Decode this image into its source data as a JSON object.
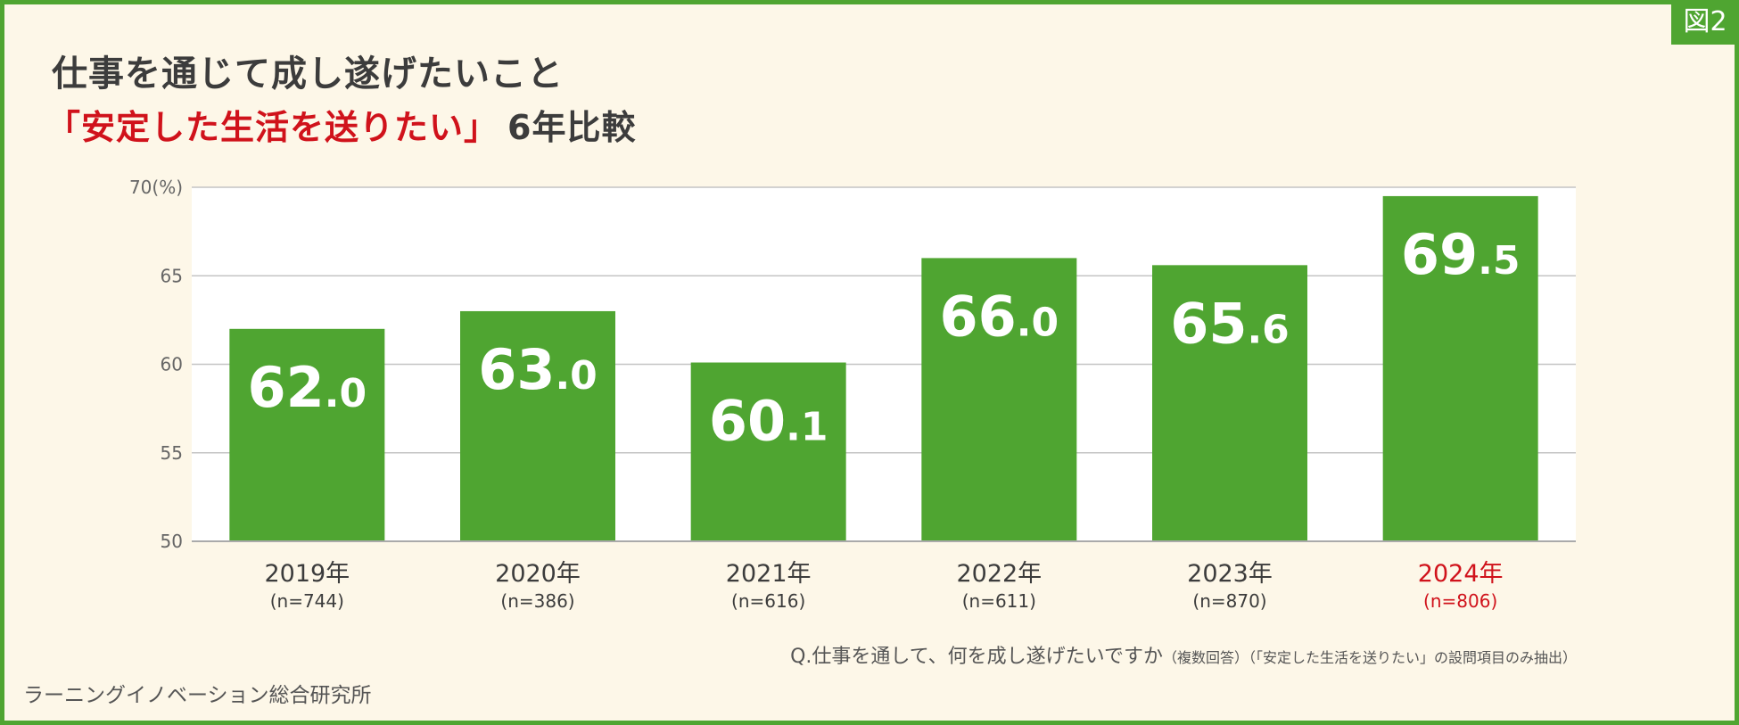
{
  "figure_label": "図2",
  "title": {
    "line1": "仕事を通じて成し遂げたいこと",
    "line2_highlight": "「安定した生活を送りたい」",
    "line2_rest": "6年比較"
  },
  "note": {
    "question": "Q.仕事を通して、何を成し遂げたいですか",
    "qualifier": "（複数回答）（「安定した生活を送りたい」の設問項目のみ抽出）"
  },
  "source": "ラーニングイノベーション総合研究所",
  "colors": {
    "bar": "#4fa531",
    "highlight": "#d0121b",
    "grid": "#c4c4c4",
    "plot_bg": "#ffffff",
    "text": "#3c3c3c"
  },
  "chart_data": {
    "type": "bar",
    "categories": [
      "2019年",
      "2020年",
      "2021年",
      "2022年",
      "2023年",
      "2024年"
    ],
    "sample_sizes": [
      "(n=744)",
      "(n=386)",
      "(n=616)",
      "(n=611)",
      "(n=870)",
      "(n=806)"
    ],
    "values": [
      62.0,
      63.0,
      60.1,
      66.0,
      65.6,
      69.5
    ],
    "value_labels": [
      {
        "int": "62",
        "dec": ".0"
      },
      {
        "int": "63",
        "dec": ".0"
      },
      {
        "int": "60",
        "dec": ".1"
      },
      {
        "int": "66",
        "dec": ".0"
      },
      {
        "int": "65",
        "dec": ".6"
      },
      {
        "int": "69",
        "dec": ".5"
      }
    ],
    "highlight_index": 5,
    "ylim": [
      50,
      70
    ],
    "yticks": [
      {
        "value": 50,
        "label": "50"
      },
      {
        "value": 55,
        "label": "55"
      },
      {
        "value": 60,
        "label": "60"
      },
      {
        "value": 65,
        "label": "65"
      },
      {
        "value": 70,
        "label": "70(%)"
      }
    ],
    "grid": true
  }
}
